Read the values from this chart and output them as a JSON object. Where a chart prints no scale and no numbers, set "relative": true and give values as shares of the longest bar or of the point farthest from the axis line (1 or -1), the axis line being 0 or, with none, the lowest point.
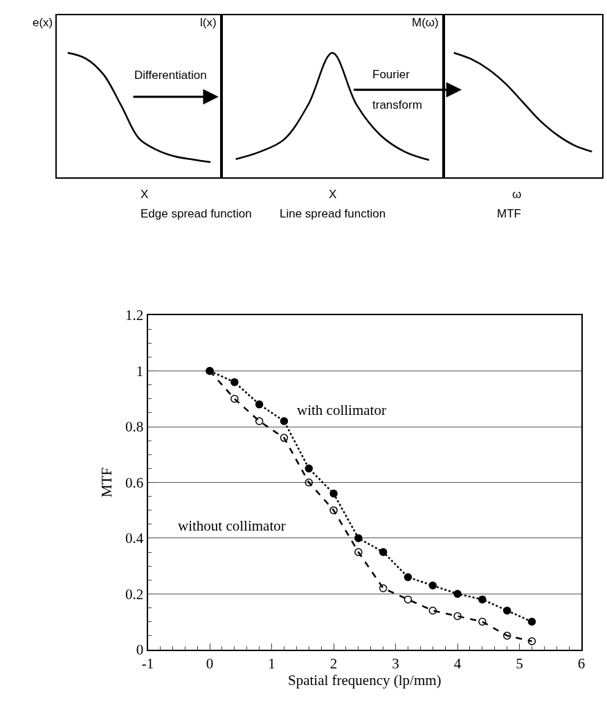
{
  "chart_data": [
    {
      "type": "line",
      "relative": true,
      "ylabel": "e(x)",
      "xlabel": "X",
      "marker": "none",
      "categories": [
        null,
        null,
        null,
        null,
        null,
        null,
        null,
        null,
        null
      ],
      "series": [
        {
          "color": "#000000",
          "values": [
            1,
            0.955,
            0.827,
            0.576,
            0.312,
            0.221,
            0.17,
            0.145,
            0.124
          ]
        }
      ],
      "annotations": [
        "Edge spread function",
        "Differentiation"
      ]
    },
    {
      "type": "line",
      "relative": true,
      "ylabel": "l(x)",
      "xlabel": "X",
      "marker": "none",
      "categories": [
        null,
        null,
        null,
        null,
        null,
        null,
        null,
        null,
        null
      ],
      "series": [
        {
          "color": "#000000",
          "values": [
            0.148,
            0.207,
            0.305,
            0.584,
            1,
            0.584,
            0.338,
            0.207,
            0.141
          ]
        }
      ],
      "annotations": [
        "Line spread function",
        "Fourier transform"
      ]
    },
    {
      "type": "line",
      "relative": true,
      "ylabel": "M(ω)",
      "xlabel": "ω",
      "marker": "none",
      "categories": [
        null,
        null,
        null,
        null,
        null,
        null,
        null,
        null,
        null
      ],
      "series": [
        {
          "color": "#000000",
          "values": [
            1,
            0.95,
            0.868,
            0.752,
            0.604,
            0.455,
            0.34,
            0.257,
            0.208
          ]
        }
      ],
      "annotations": [
        "MTF"
      ]
    },
    {
      "type": "line",
      "xlabel": "Spatial frequency (lp/mm)",
      "ylabel": "MTF",
      "grid": "y",
      "marker": "circle",
      "x": [
        0,
        0.4,
        0.8,
        1.2,
        1.6,
        2.0,
        2.4,
        2.8,
        3.2,
        3.6,
        4.0,
        4.4,
        4.8,
        5.2
      ],
      "xlim": [
        -1,
        6
      ],
      "xticks": [
        -1,
        0,
        1,
        2,
        3,
        4,
        5,
        6
      ],
      "ylim": [
        0,
        1.2
      ],
      "yticks": [
        0,
        0.2,
        0.4,
        0.6,
        0.8,
        1,
        1.2
      ],
      "series": [
        {
          "color": "#000000",
          "line_style": "dashed",
          "marker": "circle-open",
          "values": [
            1,
            0.9,
            0.82,
            0.76,
            0.6,
            0.5,
            0.35,
            0.22,
            0.18,
            0.14,
            0.12,
            0.1,
            0.05,
            0.03
          ]
        },
        {
          "color": "#000000",
          "line_style": "dotted",
          "marker": "circle",
          "values": [
            1,
            0.96,
            0.88,
            0.82,
            0.65,
            0.56,
            0.4,
            0.35,
            0.26,
            0.23,
            0.2,
            0.18,
            0.14,
            0.1
          ]
        }
      ],
      "annotations": [
        "with collimator",
        "without collimator"
      ]
    }
  ]
}
